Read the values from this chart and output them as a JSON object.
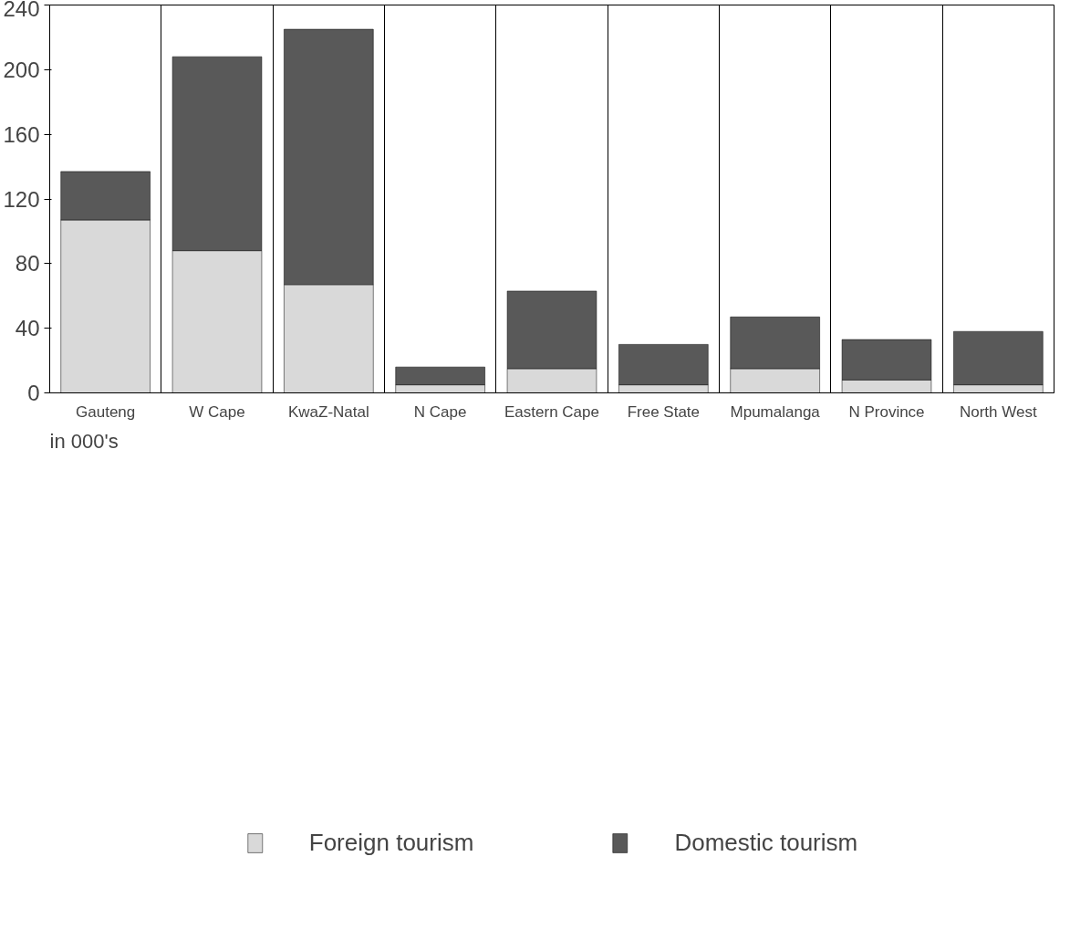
{
  "chart_data": {
    "type": "bar",
    "stacked": true,
    "categories": [
      "Gauteng",
      "W Cape",
      "KwaZ-Natal",
      "N Cape",
      "Eastern Cape",
      "Free State",
      "Mpumalanga",
      "N Province",
      "North West"
    ],
    "series": [
      {
        "name": "Foreign tourism",
        "color": "#d9d9d9",
        "values": [
          107,
          88,
          67,
          5,
          15,
          5,
          15,
          8,
          5
        ]
      },
      {
        "name": "Domestic tourism",
        "color": "#595959",
        "values": [
          30,
          120,
          158,
          11,
          48,
          25,
          32,
          25,
          33
        ]
      }
    ],
    "ylim": [
      0,
      240
    ],
    "yticks": [
      0,
      40,
      80,
      120,
      160,
      200,
      240
    ],
    "grid": "x",
    "legend": "bottom",
    "annotations": [
      "in 000's"
    ]
  }
}
